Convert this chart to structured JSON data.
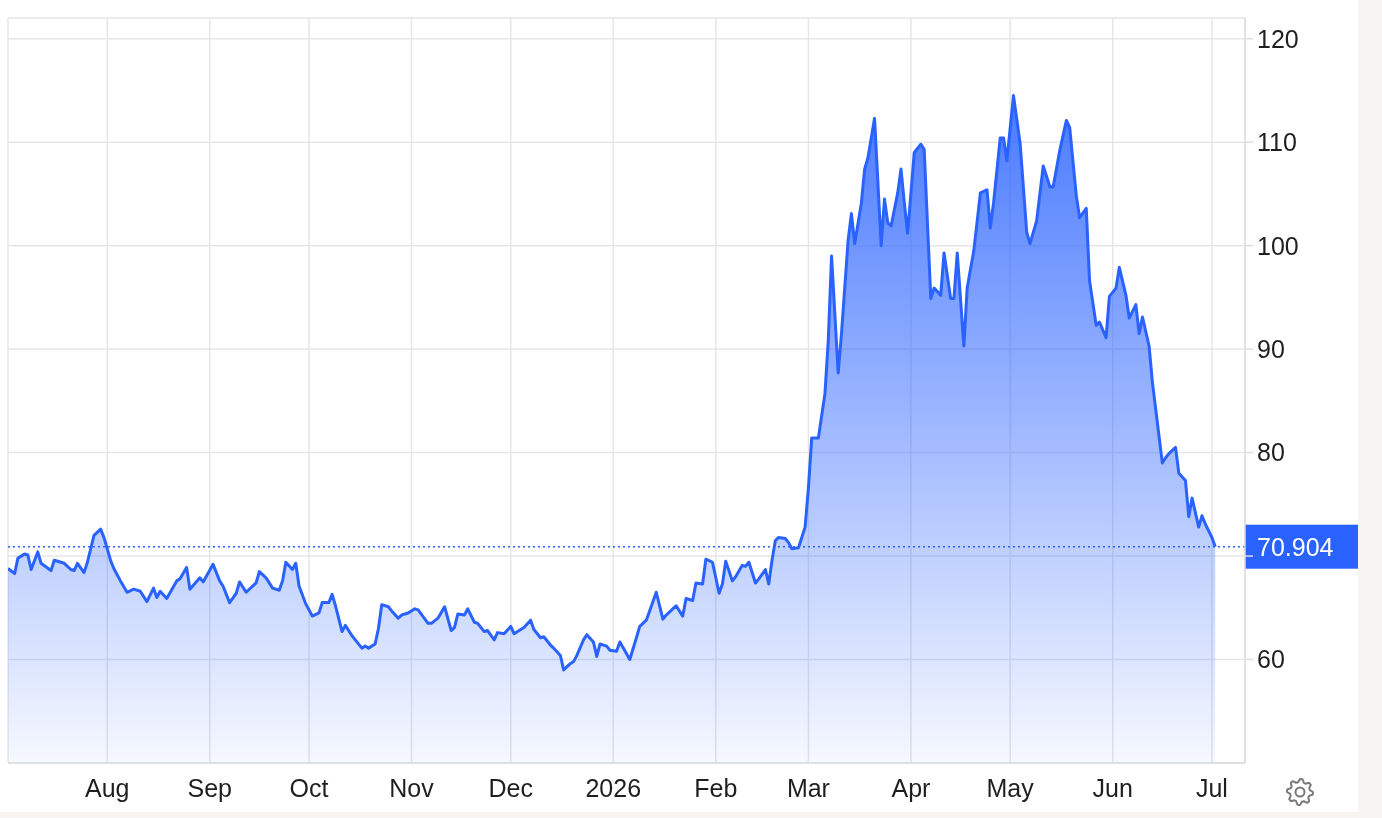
{
  "chart_data": {
    "type": "area",
    "color": "#2962ff",
    "x": [
      "2025-07-02",
      "2025-07-04",
      "2025-07-05",
      "2025-07-07",
      "2025-07-08",
      "2025-07-09",
      "2025-07-11",
      "2025-07-12",
      "2025-07-15",
      "2025-07-16",
      "2025-07-19",
      "2025-07-21",
      "2025-07-22",
      "2025-07-23",
      "2025-07-25",
      "2025-07-26",
      "2025-07-28",
      "2025-07-30",
      "2025-07-31",
      "2025-08-02",
      "2025-08-03",
      "2025-08-05",
      "2025-08-07",
      "2025-08-09",
      "2025-08-11",
      "2025-08-13",
      "2025-08-15",
      "2025-08-16",
      "2025-08-17",
      "2025-08-19",
      "2025-08-22",
      "2025-08-23",
      "2025-08-25",
      "2025-08-26",
      "2025-08-29",
      "2025-08-30",
      "2025-09-02",
      "2025-09-04",
      "2025-09-05",
      "2025-09-07",
      "2025-09-09",
      "2025-09-10",
      "2025-09-12",
      "2025-09-15",
      "2025-09-16",
      "2025-09-18",
      "2025-09-20",
      "2025-09-22",
      "2025-09-23",
      "2025-09-24",
      "2025-09-26",
      "2025-09-27",
      "2025-09-28",
      "2025-09-30",
      "2025-10-02",
      "2025-10-04",
      "2025-10-05",
      "2025-10-07",
      "2025-10-08",
      "2025-10-09",
      "2025-10-11",
      "2025-10-12",
      "2025-10-14",
      "2025-10-15",
      "2025-10-17",
      "2025-10-18",
      "2025-10-19",
      "2025-10-21",
      "2025-10-22",
      "2025-10-23",
      "2025-10-25",
      "2025-10-26",
      "2025-10-28",
      "2025-10-29",
      "2025-10-31",
      "2025-11-02",
      "2025-11-03",
      "2025-11-06",
      "2025-11-07",
      "2025-11-09",
      "2025-11-11",
      "2025-11-13",
      "2025-11-14",
      "2025-11-15",
      "2025-11-17",
      "2025-11-18",
      "2025-11-20",
      "2025-11-21",
      "2025-11-23",
      "2025-11-24",
      "2025-11-26",
      "2025-11-27",
      "2025-11-29",
      "2025-12-01",
      "2025-12-02",
      "2025-12-05",
      "2025-12-07",
      "2025-12-08",
      "2025-12-10",
      "2025-12-11",
      "2025-12-13",
      "2025-12-14",
      "2025-12-16",
      "2025-12-17",
      "2025-12-19",
      "2025-12-20",
      "2025-12-21",
      "2025-12-23",
      "2025-12-24",
      "2025-12-26",
      "2025-12-27",
      "2025-12-28",
      "2025-12-30",
      "2025-12-31",
      "2026-01-02",
      "2026-01-03",
      "2026-01-06",
      "2026-01-08",
      "2026-01-09",
      "2026-01-11",
      "2026-01-14",
      "2026-01-16",
      "2026-01-17",
      "2026-01-19",
      "2026-01-20",
      "2026-01-22",
      "2026-01-23",
      "2026-01-25",
      "2026-01-26",
      "2026-01-28",
      "2026-01-29",
      "2026-01-31",
      "2026-02-02",
      "2026-02-03",
      "2026-02-04",
      "2026-02-06",
      "2026-02-07",
      "2026-02-09",
      "2026-02-10",
      "2026-02-11",
      "2026-02-13",
      "2026-02-14",
      "2026-02-16",
      "2026-02-17",
      "2026-02-18",
      "2026-02-19",
      "2026-02-20",
      "2026-02-22",
      "2026-02-23",
      "2026-02-24",
      "2026-02-26",
      "2026-02-28",
      "2026-03-01",
      "2026-03-02",
      "2026-03-04",
      "2026-03-06",
      "2026-03-07",
      "2026-03-08",
      "2026-03-10",
      "2026-03-11",
      "2026-03-13",
      "2026-03-14",
      "2026-03-15",
      "2026-03-17",
      "2026-03-18",
      "2026-03-19",
      "2026-03-21",
      "2026-03-23",
      "2026-03-24",
      "2026-03-25",
      "2026-03-26",
      "2026-03-28",
      "2026-03-29",
      "2026-03-30",
      "2026-03-31",
      "2026-04-02",
      "2026-04-04",
      "2026-04-05",
      "2026-04-07",
      "2026-04-08",
      "2026-04-10",
      "2026-04-11",
      "2026-04-13",
      "2026-04-14",
      "2026-04-15",
      "2026-04-17",
      "2026-04-18",
      "2026-04-20",
      "2026-04-22",
      "2026-04-24",
      "2026-04-25",
      "2026-04-26",
      "2026-04-28",
      "2026-04-29",
      "2026-04-30",
      "2026-05-02",
      "2026-05-04",
      "2026-05-06",
      "2026-05-07",
      "2026-05-09",
      "2026-05-11",
      "2026-05-13",
      "2026-05-14",
      "2026-05-16",
      "2026-05-18",
      "2026-05-19",
      "2026-05-21",
      "2026-05-22",
      "2026-05-24",
      "2026-05-25",
      "2026-05-27",
      "2026-05-28",
      "2026-05-30",
      "2026-05-31",
      "2026-06-02",
      "2026-06-03",
      "2026-06-05",
      "2026-06-06",
      "2026-06-08",
      "2026-06-09",
      "2026-06-10",
      "2026-06-12",
      "2026-06-13",
      "2026-06-16",
      "2026-06-17",
      "2026-06-18",
      "2026-06-20",
      "2026-06-21",
      "2026-06-23",
      "2026-06-24",
      "2026-06-25",
      "2026-06-27",
      "2026-06-28",
      "2026-06-29",
      "2026-07-01",
      "2026-07-02"
    ],
    "values": [
      68.8,
      68.3,
      69.8,
      70.2,
      70.1,
      68.7,
      70.4,
      69.3,
      68.6,
      69.6,
      69.3,
      68.7,
      68.6,
      69.3,
      68.4,
      69.4,
      72.0,
      72.6,
      71.8,
      69.6,
      68.8,
      67.6,
      66.5,
      66.8,
      66.6,
      65.6,
      66.9,
      66.0,
      66.6,
      65.9,
      67.6,
      67.8,
      68.9,
      66.8,
      67.9,
      67.5,
      69.2,
      67.6,
      67.1,
      65.5,
      66.4,
      67.5,
      66.5,
      67.4,
      68.5,
      67.9,
      66.9,
      66.7,
      67.6,
      69.4,
      68.7,
      69.3,
      67.1,
      65.4,
      64.2,
      64.5,
      65.5,
      65.5,
      66.3,
      65.2,
      62.7,
      63.3,
      62.3,
      61.9,
      61.1,
      61.3,
      61.1,
      61.5,
      63.0,
      65.3,
      65.1,
      64.7,
      64.0,
      64.3,
      64.5,
      64.9,
      64.8,
      63.5,
      63.5,
      64.0,
      65.1,
      62.8,
      63.1,
      64.4,
      64.3,
      64.9,
      63.6,
      63.5,
      62.7,
      62.8,
      61.9,
      62.6,
      62.5,
      63.2,
      62.5,
      63.1,
      63.8,
      62.9,
      62.1,
      62.2,
      61.4,
      61.1,
      60.4,
      59.0,
      59.6,
      59.8,
      60.4,
      61.9,
      62.4,
      61.7,
      60.3,
      61.5,
      61.3,
      60.9,
      60.8,
      61.7,
      60.0,
      62.1,
      63.2,
      63.8,
      66.5,
      63.9,
      64.3,
      64.9,
      65.2,
      64.2,
      65.9,
      65.7,
      67.4,
      67.3,
      69.7,
      69.4,
      66.4,
      67.3,
      69.5,
      67.6,
      68.0,
      69.1,
      69.0,
      69.4,
      67.4,
      67.8,
      68.7,
      67.3,
      69.6,
      71.5,
      71.8,
      71.7,
      71.3,
      70.7,
      70.8,
      72.8,
      76.6,
      81.4,
      81.4,
      85.7,
      90.8,
      99.0,
      87.7,
      91.5,
      100.5,
      103.1,
      100.2,
      104.1,
      107.4,
      108.5,
      112.3,
      100.0,
      104.5,
      102.2,
      101.9,
      105.1,
      107.4,
      104.1,
      101.2,
      109.0,
      109.8,
      109.3,
      94.9,
      95.9,
      95.2,
      99.3,
      94.9,
      94.9,
      99.3,
      90.3,
      95.9,
      99.5,
      105.1,
      105.4,
      101.7,
      104.2,
      110.4,
      110.4,
      108.2,
      114.5,
      109.9,
      101.3,
      100.2,
      102.4,
      107.7,
      105.7,
      105.7,
      109.2,
      112.1,
      111.4,
      104.8,
      102.7,
      103.6,
      96.6,
      92.3,
      92.6,
      91.1,
      95.1,
      95.9,
      97.9,
      95.2,
      93.0,
      94.3,
      91.5,
      93.1,
      90.3,
      86.8,
      79.0,
      79.5,
      79.9,
      80.5,
      78.0,
      77.3,
      73.8,
      75.6,
      72.8,
      73.9,
      73.1,
      71.8,
      70.904
    ],
    "xlim": [
      "2025-07-02",
      "2026-07-11"
    ],
    "xticks": [
      {
        "value": "2025-08-01",
        "label": "Aug"
      },
      {
        "value": "2025-09-01",
        "label": "Sep"
      },
      {
        "value": "2025-10-01",
        "label": "Oct"
      },
      {
        "value": "2025-11-01",
        "label": "Nov"
      },
      {
        "value": "2025-12-01",
        "label": "Dec"
      },
      {
        "value": "2026-01-01",
        "label": "2026"
      },
      {
        "value": "2026-02-01",
        "label": "Feb"
      },
      {
        "value": "2026-03-01",
        "label": "Mar"
      },
      {
        "value": "2026-04-01",
        "label": "Apr"
      },
      {
        "value": "2026-05-01",
        "label": "May"
      },
      {
        "value": "2026-06-01",
        "label": "Jun"
      },
      {
        "value": "2026-07-01",
        "label": "Jul"
      }
    ],
    "ylim": [
      50,
      122
    ],
    "yticks": [
      60,
      {
        "value": 70,
        "label": null
      },
      80,
      90,
      100,
      110,
      120
    ],
    "grid": true,
    "ref_lines": [
      {
        "axis": "y",
        "value": 70.904,
        "label": "70.904",
        "color": "#2962ff",
        "line_style": "dotted"
      }
    ]
  }
}
